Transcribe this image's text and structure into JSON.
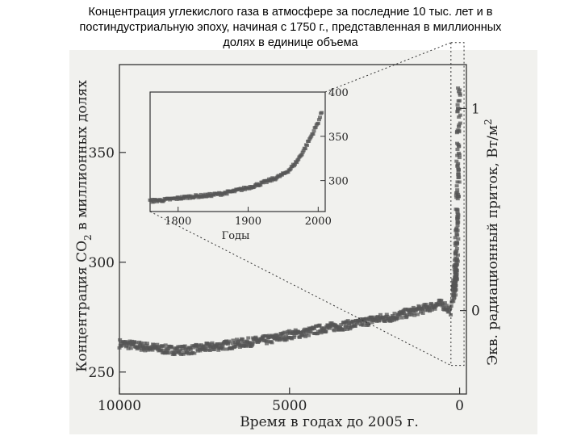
{
  "title_lines": [
    "Концентрация углекислого газа в атмосфере за последние 10 тыс. лет и в",
    "постиндустриальную эпоху, начиная с 1750 г., представленная в миллионных",
    "долях в единице объема"
  ],
  "colors": {
    "series": "#555555",
    "axis": "#333333",
    "background": "#f1f1ee"
  },
  "chart_data": [
    {
      "type": "scatter",
      "title": "",
      "xlabel": "Время в годах до 2005 г.",
      "ylabel": "Концентрация CO2 в миллионных долях",
      "ylabel_parts": [
        "Концентрация CO",
        "2",
        " в миллионных долях"
      ],
      "y2label": "Экв. радиационный приток, Вт/м2",
      "y2label_parts": [
        "Экв. радиационный приток, Вт/м",
        "2"
      ],
      "xlim": [
        10000,
        -200
      ],
      "ylim": [
        240,
        390
      ],
      "xticks": [
        10000,
        5000,
        0
      ],
      "yticks": [
        250,
        300,
        350
      ],
      "y2ticks": [
        {
          "label": "0",
          "ppm": 278
        },
        {
          "label": "1",
          "ppm": 370
        }
      ],
      "grid": false,
      "series": [
        {
          "x": [
            10000,
            9500,
            9000,
            8500,
            8000,
            7500,
            7000,
            6500,
            6000,
            5500,
            5000,
            4500,
            4000,
            3500,
            3000,
            2500,
            2000,
            1500,
            1000,
            800,
            600,
            400,
            300,
            255,
            200,
            150,
            100,
            80,
            60,
            40,
            20,
            10,
            0
          ],
          "y": [
            263,
            262,
            261,
            260,
            260,
            261,
            262,
            263,
            264,
            265,
            267,
            268,
            270,
            271,
            272,
            274,
            275,
            277,
            279,
            280,
            281,
            280,
            278,
            278,
            283,
            286,
            296,
            305,
            318,
            335,
            355,
            368,
            378
          ]
        }
      ]
    },
    {
      "type": "scatter",
      "title": "",
      "xlabel": "Годы",
      "ylabel": "",
      "xlim": [
        1760,
        2010
      ],
      "ylim": [
        265,
        400
      ],
      "xticks": [
        1800,
        1900,
        2000
      ],
      "yticks": [
        300,
        350,
        400
      ],
      "grid": false,
      "series": [
        {
          "x": [
            1760,
            1780,
            1800,
            1820,
            1840,
            1860,
            1880,
            1900,
            1920,
            1940,
            1950,
            1960,
            1970,
            1980,
            1990,
            2000,
            2005
          ],
          "y": [
            277,
            278,
            280,
            282,
            283,
            285,
            288,
            292,
            297,
            303,
            307,
            313,
            322,
            335,
            350,
            366,
            377
          ]
        }
      ]
    }
  ]
}
